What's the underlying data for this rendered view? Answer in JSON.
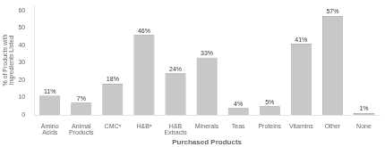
{
  "chart_data": {
    "type": "bar",
    "categories": [
      "Amino\nAcids",
      "Animal\nProducts",
      "CMCᵃ",
      "H&Bᵃ",
      "H&B\nExtracts",
      "Minerals",
      "Teas",
      "Proteins",
      "Vitamins",
      "Other",
      "None"
    ],
    "values": [
      11,
      7,
      18,
      46,
      24,
      33,
      4,
      5,
      41,
      57,
      1
    ],
    "value_labels": [
      "11%",
      "7%",
      "18%",
      "46%",
      "24%",
      "33%",
      "4%",
      "5%",
      "41%",
      "57%",
      "1%"
    ],
    "data_labels": true,
    "color": "#c8c8c8",
    "xlabel": "Purchased Products",
    "ylabel": "% of Products with\nIngredients Listed",
    "ylim": [
      0,
      63
    ],
    "yticks": [
      0,
      10,
      20,
      30,
      40,
      50,
      60
    ],
    "grid": false
  }
}
